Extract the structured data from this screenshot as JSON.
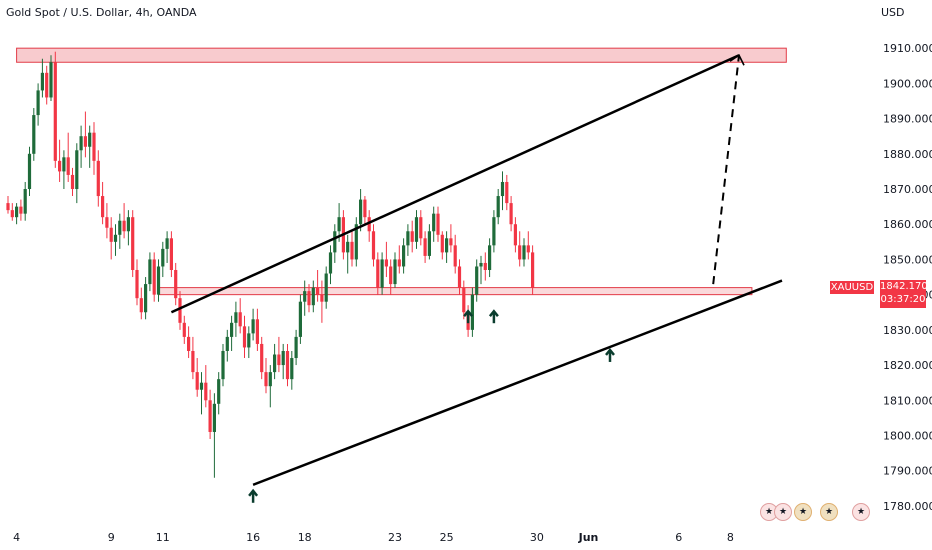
{
  "header": {
    "title": "Gold Spot / U.S. Dollar, 4h, OANDA",
    "currency": "USD"
  },
  "price_tag": {
    "symbol": "XAUUSD",
    "price": "1842.170",
    "countdown": "03:37:20"
  },
  "colors": {
    "up": "#1f6b3a",
    "down": "#f23645",
    "zone_fill": "#f2a0a6",
    "zone_stroke": "#e23b47",
    "trendline": "#000000"
  },
  "icons": [
    "flag-usa-icon",
    "flag-usa-icon",
    "flag-usa-icon",
    "flag-usa-icon",
    "flag-usa-icon"
  ],
  "chart_data": {
    "type": "candlestick",
    "title": "Gold Spot / U.S. Dollar, 4h, OANDA",
    "ylabel": "USD",
    "ylim": [
      1776,
      1918
    ],
    "y_ticks": [
      "1910.000",
      "1900.000",
      "1890.000",
      "1880.000",
      "1870.000",
      "1860.000",
      "1850.000",
      "1840.000",
      "1830.000",
      "1820.000",
      "1810.000",
      "1800.000",
      "1790.000",
      "1780.000"
    ],
    "y_tick_values": [
      1910,
      1900,
      1890,
      1880,
      1870,
      1860,
      1850,
      1840,
      1830,
      1820,
      1810,
      1800,
      1790,
      1780
    ],
    "x_ticks": [
      "4",
      "9",
      "11",
      "16",
      "18",
      "23",
      "25",
      "30",
      "Jun",
      "6",
      "8"
    ],
    "x_tick_slots": [
      2,
      24,
      36,
      57,
      69,
      90,
      102,
      123,
      135,
      156,
      168
    ],
    "candles": [
      [
        1866,
        1868,
        1863,
        1864
      ],
      [
        1864,
        1866,
        1861,
        1862
      ],
      [
        1862,
        1866,
        1860,
        1865
      ],
      [
        1865,
        1867,
        1861,
        1863
      ],
      [
        1863,
        1872,
        1861,
        1870
      ],
      [
        1870,
        1882,
        1868,
        1880
      ],
      [
        1880,
        1893,
        1878,
        1891
      ],
      [
        1891,
        1900,
        1888,
        1898
      ],
      [
        1898,
        1907,
        1896,
        1903
      ],
      [
        1903,
        1905,
        1894,
        1896
      ],
      [
        1896,
        1908,
        1895,
        1906
      ],
      [
        1906,
        1909,
        1876,
        1878
      ],
      [
        1878,
        1884,
        1872,
        1875
      ],
      [
        1875,
        1881,
        1870,
        1879
      ],
      [
        1879,
        1886,
        1872,
        1874
      ],
      [
        1874,
        1876,
        1868,
        1870
      ],
      [
        1870,
        1883,
        1866,
        1881
      ],
      [
        1881,
        1888,
        1876,
        1885
      ],
      [
        1885,
        1892,
        1879,
        1882
      ],
      [
        1882,
        1888,
        1876,
        1886
      ],
      [
        1886,
        1889,
        1874,
        1878
      ],
      [
        1878,
        1881,
        1865,
        1868
      ],
      [
        1868,
        1872,
        1860,
        1862
      ],
      [
        1862,
        1866,
        1856,
        1859
      ],
      [
        1859,
        1862,
        1850,
        1855
      ],
      [
        1855,
        1860,
        1851,
        1857
      ],
      [
        1857,
        1863,
        1853,
        1861
      ],
      [
        1861,
        1866,
        1856,
        1858
      ],
      [
        1858,
        1864,
        1854,
        1862
      ],
      [
        1862,
        1864,
        1845,
        1847
      ],
      [
        1847,
        1850,
        1837,
        1839
      ],
      [
        1839,
        1842,
        1833,
        1835
      ],
      [
        1835,
        1845,
        1833,
        1843
      ],
      [
        1843,
        1852,
        1841,
        1850
      ],
      [
        1850,
        1852,
        1838,
        1840
      ],
      [
        1840,
        1850,
        1838,
        1848
      ],
      [
        1848,
        1855,
        1845,
        1853
      ],
      [
        1853,
        1858,
        1849,
        1856
      ],
      [
        1856,
        1858,
        1845,
        1847
      ],
      [
        1847,
        1849,
        1837,
        1839
      ],
      [
        1839,
        1841,
        1830,
        1832
      ],
      [
        1832,
        1834,
        1826,
        1828
      ],
      [
        1828,
        1831,
        1822,
        1824
      ],
      [
        1824,
        1828,
        1816,
        1818
      ],
      [
        1818,
        1822,
        1811,
        1813
      ],
      [
        1813,
        1818,
        1806,
        1815
      ],
      [
        1815,
        1820,
        1808,
        1810
      ],
      [
        1810,
        1813,
        1799,
        1801
      ],
      [
        1801,
        1812,
        1788,
        1809
      ],
      [
        1809,
        1818,
        1806,
        1816
      ],
      [
        1816,
        1826,
        1814,
        1824
      ],
      [
        1824,
        1830,
        1821,
        1828
      ],
      [
        1828,
        1834,
        1824,
        1832
      ],
      [
        1832,
        1838,
        1828,
        1835
      ],
      [
        1835,
        1839,
        1829,
        1831
      ],
      [
        1831,
        1834,
        1822,
        1825
      ],
      [
        1825,
        1831,
        1822,
        1829
      ],
      [
        1829,
        1836,
        1827,
        1833
      ],
      [
        1833,
        1836,
        1824,
        1826
      ],
      [
        1826,
        1828,
        1816,
        1818
      ],
      [
        1818,
        1822,
        1812,
        1814
      ],
      [
        1814,
        1820,
        1808,
        1818
      ],
      [
        1818,
        1826,
        1816,
        1823
      ],
      [
        1823,
        1828,
        1818,
        1820
      ],
      [
        1820,
        1826,
        1816,
        1824
      ],
      [
        1824,
        1826,
        1814,
        1816
      ],
      [
        1816,
        1824,
        1813,
        1822
      ],
      [
        1822,
        1830,
        1820,
        1828
      ],
      [
        1828,
        1840,
        1826,
        1838
      ],
      [
        1838,
        1844,
        1834,
        1841
      ],
      [
        1841,
        1843,
        1835,
        1837
      ],
      [
        1837,
        1844,
        1835,
        1842
      ],
      [
        1842,
        1847,
        1838,
        1840
      ],
      [
        1840,
        1844,
        1832,
        1838
      ],
      [
        1838,
        1848,
        1836,
        1846
      ],
      [
        1846,
        1854,
        1843,
        1852
      ],
      [
        1852,
        1860,
        1849,
        1858
      ],
      [
        1858,
        1866,
        1855,
        1862
      ],
      [
        1862,
        1864,
        1850,
        1852
      ],
      [
        1852,
        1857,
        1846,
        1855
      ],
      [
        1855,
        1858,
        1848,
        1850
      ],
      [
        1850,
        1862,
        1848,
        1860
      ],
      [
        1860,
        1870,
        1858,
        1867
      ],
      [
        1867,
        1868,
        1860,
        1862
      ],
      [
        1862,
        1864,
        1855,
        1858
      ],
      [
        1858,
        1860,
        1848,
        1850
      ],
      [
        1850,
        1852,
        1840,
        1842
      ],
      [
        1842,
        1852,
        1840,
        1850
      ],
      [
        1850,
        1855,
        1845,
        1848
      ],
      [
        1848,
        1850,
        1840,
        1843
      ],
      [
        1843,
        1852,
        1842,
        1850
      ],
      [
        1850,
        1854,
        1846,
        1848
      ],
      [
        1848,
        1856,
        1846,
        1854
      ],
      [
        1854,
        1860,
        1851,
        1858
      ],
      [
        1858,
        1861,
        1852,
        1855
      ],
      [
        1855,
        1864,
        1853,
        1862
      ],
      [
        1862,
        1864,
        1854,
        1856
      ],
      [
        1856,
        1858,
        1849,
        1851
      ],
      [
        1851,
        1860,
        1850,
        1858
      ],
      [
        1858,
        1865,
        1855,
        1863
      ],
      [
        1863,
        1865,
        1855,
        1857
      ],
      [
        1857,
        1858,
        1850,
        1852
      ],
      [
        1852,
        1858,
        1849,
        1856
      ],
      [
        1856,
        1860,
        1852,
        1854
      ],
      [
        1854,
        1857,
        1846,
        1848
      ],
      [
        1848,
        1850,
        1840,
        1842
      ],
      [
        1842,
        1844,
        1833,
        1835
      ],
      [
        1835,
        1837,
        1828,
        1830
      ],
      [
        1830,
        1842,
        1828,
        1840
      ],
      [
        1840,
        1850,
        1838,
        1848
      ],
      [
        1848,
        1851,
        1843,
        1849
      ],
      [
        1849,
        1852,
        1844,
        1847
      ],
      [
        1847,
        1856,
        1845,
        1854
      ],
      [
        1854,
        1864,
        1852,
        1862
      ],
      [
        1862,
        1870,
        1860,
        1868
      ],
      [
        1868,
        1875,
        1864,
        1872
      ],
      [
        1872,
        1874,
        1864,
        1866
      ],
      [
        1866,
        1868,
        1858,
        1860
      ],
      [
        1860,
        1862,
        1852,
        1854
      ],
      [
        1854,
        1858,
        1848,
        1850
      ],
      [
        1850,
        1856,
        1848,
        1854
      ],
      [
        1854,
        1858,
        1850,
        1852
      ],
      [
        1852,
        1854,
        1840,
        1842
      ]
    ],
    "annotations": {
      "resistance_zone": {
        "from_slot": 2,
        "to_slot": 181,
        "y_low": 1906,
        "y_high": 1910
      },
      "support_zone": {
        "from_slot": 35,
        "to_slot": 173,
        "y_low": 1840,
        "y_high": 1842
      },
      "upper_channel_line": [
        [
          38,
          1835
        ],
        [
          170,
          1908
        ]
      ],
      "lower_channel_line": [
        [
          57,
          1786
        ],
        [
          180,
          1844
        ]
      ],
      "projection_arrow": [
        [
          164,
          1843
        ],
        [
          170,
          1908
        ]
      ],
      "up_arrows": [
        [
          57,
          1786
        ],
        [
          107,
          1837
        ],
        [
          113,
          1837
        ],
        [
          140,
          1826
        ]
      ]
    }
  }
}
